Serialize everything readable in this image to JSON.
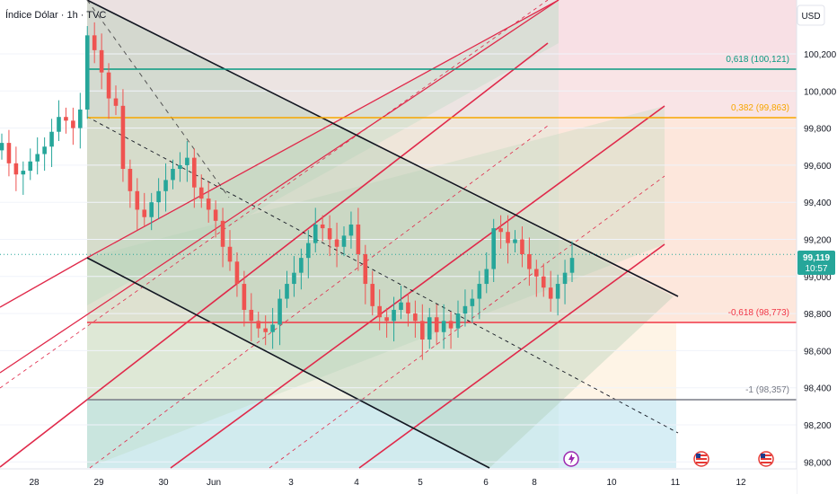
{
  "header": {
    "title": "Índice Dólar · 1h · TVC"
  },
  "currency": "USD",
  "price_badge": {
    "value": "99,119",
    "countdown": "10:57"
  },
  "colors": {
    "up": "#26a69a",
    "down": "#ef5350",
    "fib_top": "#089981",
    "fib_382": "#f7a600",
    "fib_neg": "#f23645",
    "fib_base": "#787b86",
    "pitch_red": "#e0294a",
    "pitch_black": "#131722"
  },
  "chart_data": {
    "type": "candlestick",
    "y_ticks": [
      "100,200",
      "100,000",
      "99,800",
      "99,600",
      "99,400",
      "99,200",
      "99,000",
      "98,800",
      "98,600",
      "98,400",
      "98,200",
      "98,000"
    ],
    "y_range": [
      98.0,
      100.35
    ],
    "x_ticks": [
      "28",
      "29",
      "30",
      "Jun",
      "3",
      "4",
      "5",
      "6",
      "8",
      "10",
      "11",
      "12"
    ],
    "fib_levels": [
      {
        "label": "0,618 (100,121)",
        "value": 100.121
      },
      {
        "label": "0,382 (99,863)",
        "value": 99.863
      },
      {
        "label": "-0,618 (98,773)",
        "value": 98.773
      },
      {
        "label": "-1 (98,357)",
        "value": 98.357
      }
    ],
    "last_price": 99.119,
    "close_series": [
      99.72,
      99.61,
      99.55,
      99.57,
      99.62,
      99.66,
      99.7,
      99.78,
      99.86,
      99.84,
      99.8,
      99.9,
      100.3,
      100.22,
      100.1,
      99.96,
      99.92,
      99.58,
      99.46,
      99.36,
      99.32,
      99.4,
      99.46,
      99.52,
      99.58,
      99.6,
      99.64,
      99.48,
      99.42,
      99.36,
      99.3,
      99.16,
      99.08,
      98.96,
      98.82,
      98.76,
      98.72,
      98.7,
      98.74,
      98.88,
      98.96,
      99.02,
      99.1,
      99.18,
      99.28,
      99.26,
      99.2,
      99.16,
      99.22,
      99.28,
      99.12,
      98.96,
      98.84,
      98.78,
      98.76,
      98.82,
      98.86,
      98.8,
      98.76,
      98.66,
      98.78,
      98.7,
      98.76,
      98.72,
      98.8,
      98.84,
      98.88,
      98.96,
      99.04,
      99.26,
      99.24,
      99.18,
      99.2,
      99.12,
      99.04,
      99.0,
      98.94,
      98.88,
      98.96,
      99.02,
      99.1
    ]
  }
}
